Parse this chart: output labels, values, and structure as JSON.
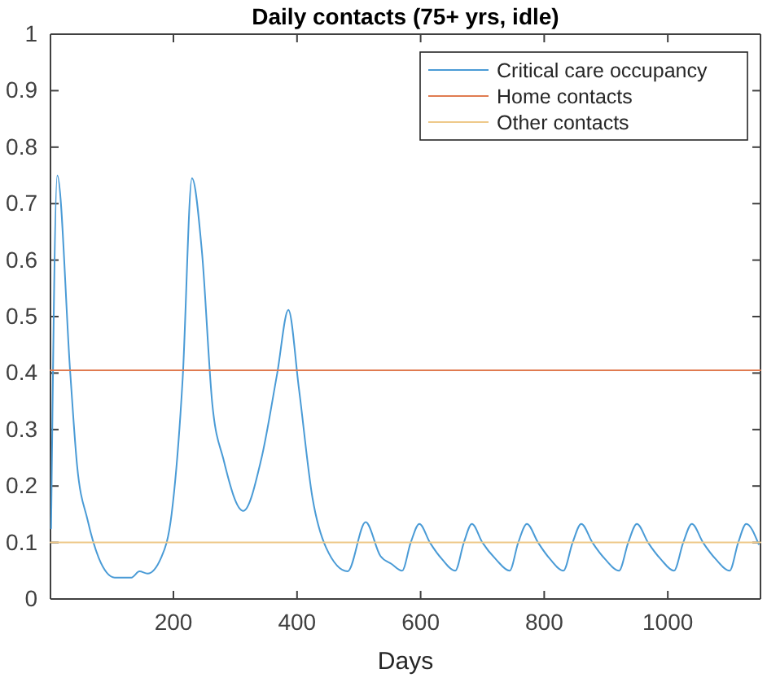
{
  "chart_data": {
    "type": "line",
    "title": "Daily contacts (75+ yrs, idle)",
    "xlabel": "Days",
    "xlim": [
      1,
      1150
    ],
    "xticks": [
      200,
      400,
      600,
      800,
      1000
    ],
    "ylim": [
      0,
      1
    ],
    "yticks": [
      0,
      0.1,
      0.2,
      0.3,
      0.4,
      0.5,
      0.6,
      0.7,
      0.8,
      0.9,
      1
    ],
    "legend": "top right",
    "grid": false,
    "line_style": "solid",
    "marker": "none",
    "series": [
      {
        "name": "Critical care occupancy",
        "color": "#4a9bd6",
        "x": [
          2,
          12,
          33,
          44,
          61,
          79,
          105,
          132,
          145,
          158,
          180,
          197,
          215,
          230,
          246,
          263,
          281,
          313,
          342,
          368,
          386,
          403,
          425,
          447,
          482,
          511,
          535,
          553,
          570,
          584,
          598,
          615,
          635,
          656,
          670,
          683,
          700,
          722,
          744,
          758,
          772,
          790,
          810,
          831,
          846,
          860,
          878,
          899,
          921,
          936,
          950,
          968,
          989,
          1010,
          1025,
          1039,
          1057,
          1078,
          1100,
          1114,
          1127,
          1147
        ],
        "values": [
          0.125,
          0.75,
          0.4,
          0.237,
          0.14,
          0.073,
          0.038,
          0.038,
          0.049,
          0.045,
          0.073,
          0.15,
          0.392,
          0.745,
          0.616,
          0.344,
          0.247,
          0.156,
          0.247,
          0.4,
          0.512,
          0.373,
          0.179,
          0.091,
          0.049,
          0.136,
          0.076,
          0.062,
          0.05,
          0.1,
          0.133,
          0.1,
          0.07,
          0.05,
          0.1,
          0.133,
          0.1,
          0.07,
          0.05,
          0.1,
          0.133,
          0.1,
          0.07,
          0.05,
          0.1,
          0.133,
          0.1,
          0.07,
          0.05,
          0.1,
          0.133,
          0.1,
          0.07,
          0.05,
          0.1,
          0.133,
          0.1,
          0.07,
          0.05,
          0.1,
          0.133,
          0.097
        ]
      },
      {
        "name": "Home contacts",
        "color": "#e07b50",
        "x": [
          1,
          1150
        ],
        "values": [
          0.405,
          0.405
        ]
      },
      {
        "name": "Other contacts",
        "color": "#eec98a",
        "x": [
          1,
          1150
        ],
        "values": [
          0.1,
          0.1
        ]
      }
    ]
  }
}
